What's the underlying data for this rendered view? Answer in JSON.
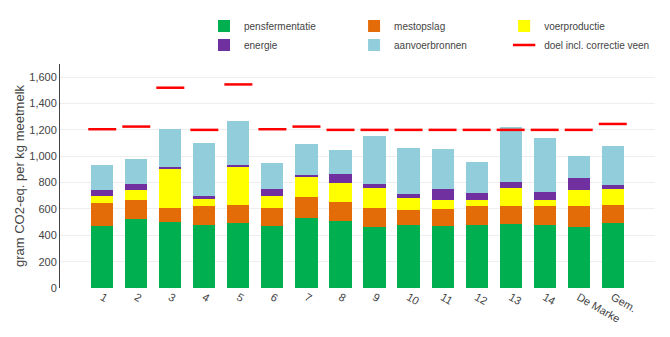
{
  "chart_data": {
    "type": "bar",
    "stacked": true,
    "categories": [
      "1",
      "2",
      "3",
      "4",
      "5",
      "6",
      "7",
      "8",
      "9",
      "10",
      "11",
      "12",
      "13",
      "14",
      "De Marke",
      "Gem."
    ],
    "series": [
      {
        "name": "pensfermentatie",
        "color": "#00b050",
        "values": [
          470,
          525,
          500,
          480,
          495,
          470,
          535,
          510,
          465,
          475,
          470,
          475,
          485,
          475,
          460,
          495
        ]
      },
      {
        "name": "mestopslag",
        "color": "#e36c09",
        "values": [
          175,
          140,
          105,
          145,
          135,
          140,
          155,
          145,
          145,
          115,
          130,
          145,
          140,
          145,
          160,
          135
        ]
      },
      {
        "name": "voerproductie",
        "color": "#ffff00",
        "values": [
          50,
          80,
          300,
          50,
          290,
          90,
          155,
          145,
          150,
          90,
          70,
          50,
          135,
          50,
          120,
          120
        ]
      },
      {
        "name": "energie",
        "color": "#7030a0",
        "values": [
          45,
          45,
          15,
          25,
          15,
          50,
          10,
          65,
          30,
          30,
          80,
          50,
          45,
          55,
          95,
          30
        ]
      },
      {
        "name": "aanvoerbronnen",
        "color": "#92cddc",
        "values": [
          195,
          190,
          290,
          400,
          330,
          195,
          235,
          185,
          365,
          355,
          305,
          240,
          420,
          410,
          165,
          295
        ]
      },
      {
        "name": "doel incl. correctie veen",
        "type": "scatter",
        "marker": "dash",
        "color": "#ff0000",
        "values": [
          1205,
          1225,
          1520,
          1200,
          1545,
          1205,
          1225,
          1200,
          1200,
          1200,
          1200,
          1200,
          1200,
          1200,
          1200,
          1245
        ]
      }
    ],
    "ylabel": "gram CO2-eq. per kg meetmelk",
    "ylim": [
      0,
      1700
    ],
    "yticks": [
      0,
      200,
      400,
      600,
      800,
      {
        "value": 1000,
        "label": "1,000"
      },
      {
        "value": 1200,
        "label": "1,200"
      },
      {
        "value": 1400,
        "label": "1,400"
      },
      {
        "value": 1600,
        "label": "1,600"
      }
    ],
    "grid": true,
    "legend": "upper right"
  }
}
